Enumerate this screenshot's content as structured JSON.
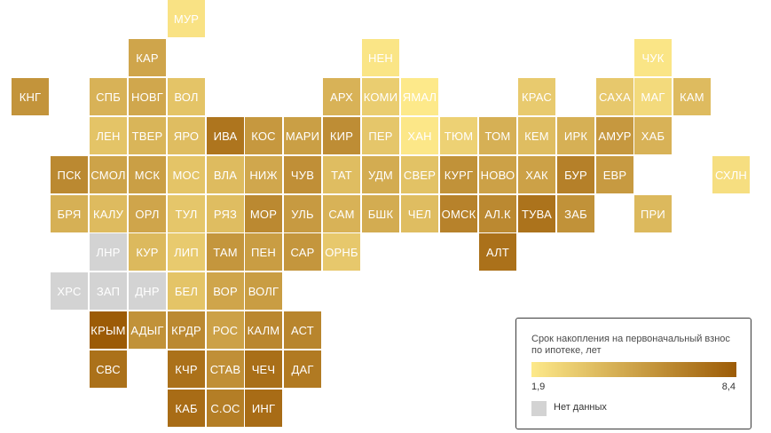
{
  "legend": {
    "title": "Срок накопления на первоначальный взнос по ипотеке, лет",
    "min_label": "1,9",
    "max_label": "8,4",
    "min_value": 1.9,
    "max_value": 8.4,
    "nodata_label": "Нет данных",
    "color_low": "#fde98a",
    "color_high": "#9c5b06",
    "color_nodata": "#d3d3d3"
  },
  "regions": [
    {
      "label": "МУР",
      "row": 0,
      "col": 4,
      "value": 2.2
    },
    {
      "label": "КАР",
      "row": 1,
      "col": 3,
      "value": 5.0
    },
    {
      "label": "НЕН",
      "row": 1,
      "col": 9,
      "value": 2.1
    },
    {
      "label": "ЧУК",
      "row": 1,
      "col": 16,
      "value": 2.1
    },
    {
      "label": "КНГ",
      "row": 2,
      "col": 0,
      "value": 5.8
    },
    {
      "label": "СПБ",
      "row": 2,
      "col": 2,
      "value": 4.4
    },
    {
      "label": "НОВГ",
      "row": 2,
      "col": 3,
      "value": 4.9
    },
    {
      "label": "ВОЛ",
      "row": 2,
      "col": 4,
      "value": 3.6
    },
    {
      "label": "АРХ",
      "row": 2,
      "col": 8,
      "value": 4.4
    },
    {
      "label": "КОМИ",
      "row": 2,
      "col": 9,
      "value": 3.2
    },
    {
      "label": "ЯМАЛ",
      "row": 2,
      "col": 10,
      "value": 1.9
    },
    {
      "label": "КРАС",
      "row": 2,
      "col": 13,
      "value": 3.3
    },
    {
      "label": "САХА",
      "row": 2,
      "col": 15,
      "value": 3.4
    },
    {
      "label": "МАГ",
      "row": 2,
      "col": 16,
      "value": 2.6
    },
    {
      "label": "КАМ",
      "row": 2,
      "col": 17,
      "value": 4.0
    },
    {
      "label": "ЛЕН",
      "row": 3,
      "col": 2,
      "value": 3.6
    },
    {
      "label": "ТВЕР",
      "row": 3,
      "col": 3,
      "value": 4.3
    },
    {
      "label": "ЯРО",
      "row": 3,
      "col": 4,
      "value": 3.9
    },
    {
      "label": "ИВА",
      "row": 3,
      "col": 5,
      "value": 7.2
    },
    {
      "label": "КОС",
      "row": 3,
      "col": 6,
      "value": 5.6
    },
    {
      "label": "МАРИ",
      "row": 3,
      "col": 7,
      "value": 5.3
    },
    {
      "label": "КИР",
      "row": 3,
      "col": 8,
      "value": 6.1
    },
    {
      "label": "ПЕР",
      "row": 3,
      "col": 9,
      "value": 3.5
    },
    {
      "label": "ХАН",
      "row": 3,
      "col": 10,
      "value": 2.0
    },
    {
      "label": "ТЮМ",
      "row": 3,
      "col": 11,
      "value": 3.0
    },
    {
      "label": "ТОМ",
      "row": 3,
      "col": 12,
      "value": 4.5
    },
    {
      "label": "КЕМ",
      "row": 3,
      "col": 13,
      "value": 3.9
    },
    {
      "label": "ИРК",
      "row": 3,
      "col": 14,
      "value": 4.5
    },
    {
      "label": "АМУР",
      "row": 3,
      "col": 15,
      "value": 5.6
    },
    {
      "label": "ХАБ",
      "row": 3,
      "col": 16,
      "value": 4.4
    },
    {
      "label": "ПСК",
      "row": 4,
      "col": 1,
      "value": 6.3
    },
    {
      "label": "СМОЛ",
      "row": 4,
      "col": 2,
      "value": 5.1
    },
    {
      "label": "МСК",
      "row": 4,
      "col": 3,
      "value": 5.3
    },
    {
      "label": "МОС",
      "row": 4,
      "col": 4,
      "value": 3.6
    },
    {
      "label": "ВЛА",
      "row": 4,
      "col": 5,
      "value": 4.0
    },
    {
      "label": "НИЖ",
      "row": 4,
      "col": 6,
      "value": 4.9
    },
    {
      "label": "ЧУВ",
      "row": 4,
      "col": 7,
      "value": 6.0
    },
    {
      "label": "ТАТ",
      "row": 4,
      "col": 8,
      "value": 3.9
    },
    {
      "label": "УДМ",
      "row": 4,
      "col": 9,
      "value": 4.7
    },
    {
      "label": "СВЕР",
      "row": 4,
      "col": 10,
      "value": 3.7
    },
    {
      "label": "КУРГ",
      "row": 4,
      "col": 11,
      "value": 5.9
    },
    {
      "label": "НОВО",
      "row": 4,
      "col": 12,
      "value": 5.2
    },
    {
      "label": "ХАК",
      "row": 4,
      "col": 13,
      "value": 5.2
    },
    {
      "label": "БУР",
      "row": 4,
      "col": 14,
      "value": 6.7
    },
    {
      "label": "ЕВР",
      "row": 4,
      "col": 15,
      "value": 5.5
    },
    {
      "label": "СХЛН",
      "row": 4,
      "col": 18,
      "value": 2.4
    },
    {
      "label": "БРЯ",
      "row": 5,
      "col": 1,
      "value": 4.5
    },
    {
      "label": "КАЛУ",
      "row": 5,
      "col": 2,
      "value": 4.0
    },
    {
      "label": "ОРЛ",
      "row": 5,
      "col": 3,
      "value": 5.0
    },
    {
      "label": "ТУЛ",
      "row": 5,
      "col": 4,
      "value": 3.5
    },
    {
      "label": "РЯЗ",
      "row": 5,
      "col": 5,
      "value": 3.9
    },
    {
      "label": "МОР",
      "row": 5,
      "col": 6,
      "value": 6.3
    },
    {
      "label": "УЛЬ",
      "row": 5,
      "col": 7,
      "value": 5.5
    },
    {
      "label": "САМ",
      "row": 5,
      "col": 8,
      "value": 4.4
    },
    {
      "label": "БШК",
      "row": 5,
      "col": 9,
      "value": 4.7
    },
    {
      "label": "ЧЕЛ",
      "row": 5,
      "col": 10,
      "value": 3.9
    },
    {
      "label": "ОМСК",
      "row": 5,
      "col": 11,
      "value": 6.6
    },
    {
      "label": "АЛ.К",
      "row": 5,
      "col": 12,
      "value": 6.3
    },
    {
      "label": "ТУВА",
      "row": 5,
      "col": 13,
      "value": 7.3
    },
    {
      "label": "ЗАБ",
      "row": 5,
      "col": 14,
      "value": 5.9
    },
    {
      "label": "ПРИ",
      "row": 5,
      "col": 16,
      "value": 4.1
    },
    {
      "label": "ЛНР",
      "row": 6,
      "col": 2,
      "value": null
    },
    {
      "label": "КУР",
      "row": 6,
      "col": 3,
      "value": 4.1
    },
    {
      "label": "ЛИП",
      "row": 6,
      "col": 4,
      "value": 3.3
    },
    {
      "label": "ТАМ",
      "row": 6,
      "col": 5,
      "value": 5.7
    },
    {
      "label": "ПЕН",
      "row": 6,
      "col": 6,
      "value": 5.4
    },
    {
      "label": "САР",
      "row": 6,
      "col": 7,
      "value": 5.7
    },
    {
      "label": "ОРНБ",
      "row": 6,
      "col": 8,
      "value": 3.4
    },
    {
      "label": "АЛТ",
      "row": 6,
      "col": 12,
      "value": 7.4
    },
    {
      "label": "ХРС",
      "row": 7,
      "col": 1,
      "value": null
    },
    {
      "label": "ЗАП",
      "row": 7,
      "col": 2,
      "value": null
    },
    {
      "label": "ДНР",
      "row": 7,
      "col": 3,
      "value": null
    },
    {
      "label": "БЕЛ",
      "row": 7,
      "col": 4,
      "value": 3.6
    },
    {
      "label": "ВОР",
      "row": 7,
      "col": 5,
      "value": 5.0
    },
    {
      "label": "ВОЛГ",
      "row": 7,
      "col": 6,
      "value": 5.4
    },
    {
      "label": "КРЫМ",
      "row": 8,
      "col": 2,
      "value": 8.4
    },
    {
      "label": "АДЫГ",
      "row": 8,
      "col": 3,
      "value": 5.9
    },
    {
      "label": "КРДР",
      "row": 8,
      "col": 4,
      "value": 6.3
    },
    {
      "label": "РОС",
      "row": 8,
      "col": 5,
      "value": 5.2
    },
    {
      "label": "КАЛМ",
      "row": 8,
      "col": 6,
      "value": 6.4
    },
    {
      "label": "АСТ",
      "row": 8,
      "col": 7,
      "value": 6.5
    },
    {
      "label": "СВС",
      "row": 9,
      "col": 2,
      "value": 7.4
    },
    {
      "label": "КЧР",
      "row": 9,
      "col": 4,
      "value": 7.4
    },
    {
      "label": "СТАВ",
      "row": 9,
      "col": 5,
      "value": 6.0
    },
    {
      "label": "ЧЕЧ",
      "row": 9,
      "col": 6,
      "value": 7.5
    },
    {
      "label": "ДАГ",
      "row": 9,
      "col": 7,
      "value": 7.0
    },
    {
      "label": "КАБ",
      "row": 10,
      "col": 4,
      "value": 7.6
    },
    {
      "label": "С.ОС",
      "row": 10,
      "col": 5,
      "value": 6.8
    },
    {
      "label": "ИНГ",
      "row": 10,
      "col": 6,
      "value": 7.6
    }
  ]
}
